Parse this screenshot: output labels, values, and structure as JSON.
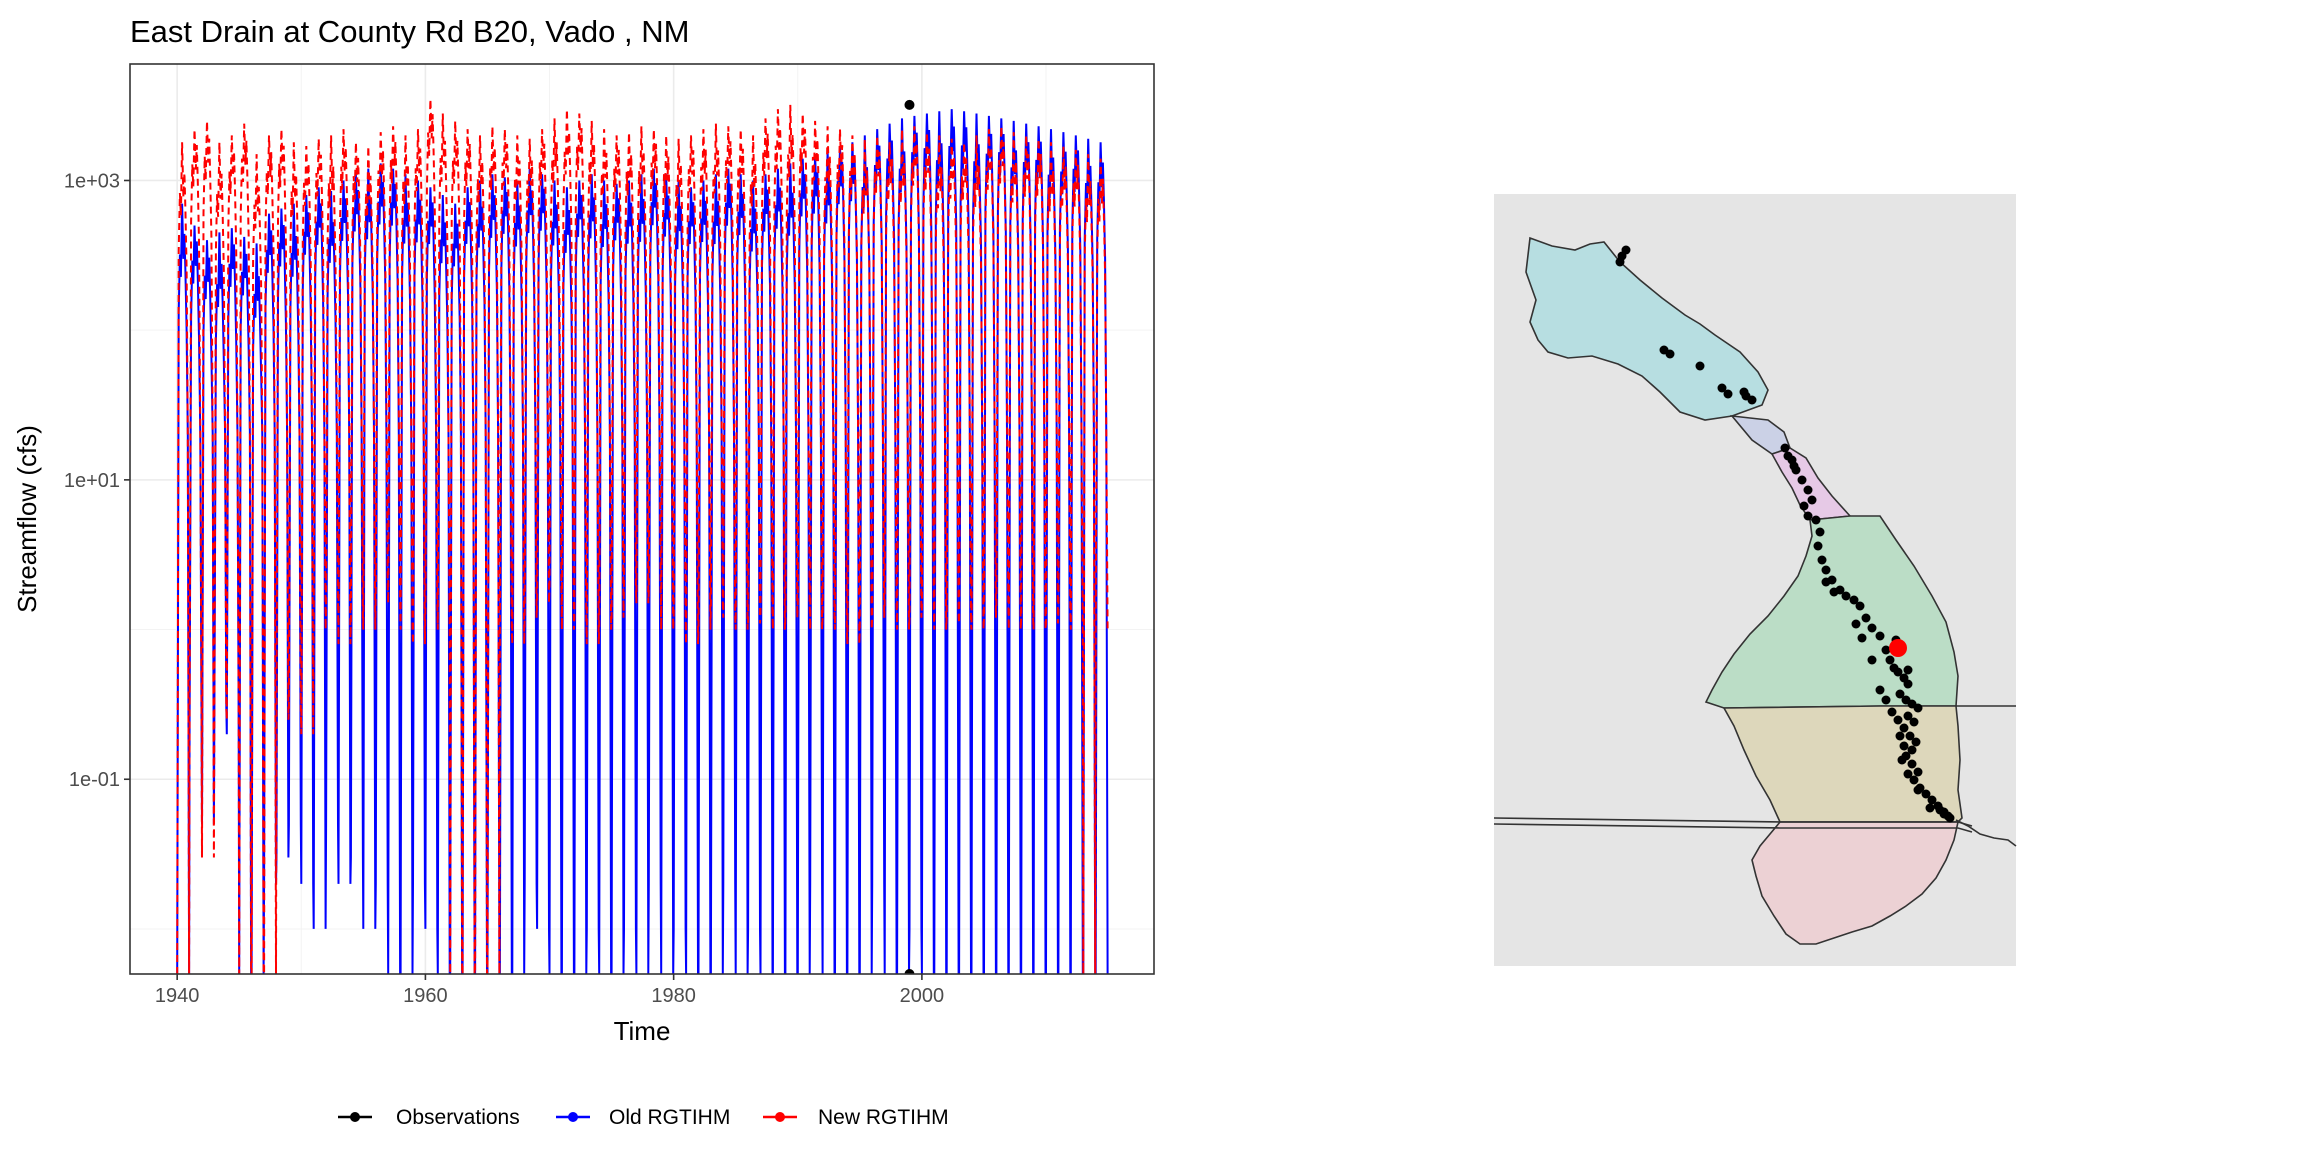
{
  "chart_data": [
    {
      "type": "line",
      "title": "East Drain at County Rd B20, Vado , NM",
      "xlabel": "Time",
      "ylabel": "Streamflow (cfs)",
      "x_ticks": [
        "1940",
        "1960",
        "1980",
        "2000"
      ],
      "y_ticks": [
        "1e-01",
        "1e+01",
        "1e+03"
      ],
      "y_scale": "log10",
      "xlim": [
        1936.2,
        2018.7
      ],
      "ylim": [
        0.005,
        6000
      ],
      "grid": true,
      "legend_position": "bottom",
      "legend": [
        "Observations",
        "Old RGTIHM",
        "New RGTIHM"
      ],
      "series": [
        {
          "name": "Observations",
          "color": "#000000",
          "style": "points",
          "points": [
            [
              1999.0,
              3200
            ],
            [
              1999.0,
              0.005
            ]
          ]
        },
        {
          "name": "Old RGTIHM",
          "color": "#0000ff",
          "style": "solid",
          "start_year": 1940,
          "end_year": 2015,
          "annual_peaks": [
            700,
            500,
            400,
            450,
            480,
            420,
            380,
            600,
            650,
            700,
            800,
            900,
            850,
            1000,
            1100,
            1200,
            1300,
            1200,
            1100,
            1000,
            900,
            800,
            700,
            900,
            1000,
            1100,
            1050,
            1000,
            1200,
            1100,
            1000,
            900,
            1000,
            1100,
            1000,
            950,
            1000,
            1100,
            1200,
            1100,
            1000,
            900,
            1000,
            1100,
            1200,
            1100,
            1000,
            1100,
            1200,
            1300,
            1400,
            1500,
            1600,
            1700,
            1800,
            2000,
            2200,
            2400,
            2600,
            2700,
            2800,
            2900,
            3000,
            2900,
            2800,
            2700,
            2600,
            2500,
            2400,
            2300,
            2200,
            2100,
            2000,
            1900,
            1800
          ],
          "annual_lows": [
            0.005,
            0.25,
            0.05,
            0.3,
            0.2,
            0.005,
            0.005,
            0.02,
            0.03,
            0.05,
            0.02,
            0.01,
            0.05,
            0.02,
            0.03,
            0.01,
            0.02,
            0.005,
            0.005,
            0.02,
            0.01,
            0.005,
            0.005,
            0.005,
            0.005,
            0.005,
            0.005,
            0.005,
            0.02,
            0.01,
            0.005,
            0.005,
            0.005,
            0.01,
            0.005,
            0.005,
            0.01,
            0.005,
            0.02,
            0.005,
            0.01,
            0.005,
            0.005,
            0.005,
            0.02,
            0.005,
            0.01,
            0.005,
            0.005,
            0.005,
            0.005,
            0.02,
            0.005,
            0.005,
            0.005,
            0.005,
            0.02,
            0.005,
            0.005,
            0.01,
            0.005,
            0.005,
            0.005,
            0.005,
            0.005,
            0.005,
            0.005,
            0.005,
            0.005,
            0.005,
            0.005,
            0.005,
            0.005,
            0.005,
            0.005
          ]
        },
        {
          "name": "New RGTIHM",
          "color": "#ff0000",
          "style": "dashed",
          "start_year": 1940,
          "end_year": 2015,
          "annual_peaks": [
            1800,
            2200,
            2500,
            1800,
            2000,
            2400,
            1500,
            2000,
            2200,
            1800,
            1700,
            1900,
            2000,
            2200,
            1800,
            1700,
            2100,
            2300,
            2000,
            2200,
            3500,
            2800,
            2500,
            2200,
            2000,
            2300,
            2200,
            2000,
            1900,
            2200,
            2600,
            3000,
            2800,
            2500,
            2200,
            2000,
            2100,
            2300,
            2200,
            2000,
            1900,
            2000,
            2200,
            2400,
            2300,
            2200,
            2000,
            2600,
            3000,
            3200,
            2800,
            2500,
            2300,
            2200,
            2000,
            1900,
            2000,
            1800,
            2200,
            2300,
            2100,
            2000,
            1900,
            1800,
            2000,
            2200,
            2300,
            2100,
            2000,
            1900,
            1800,
            1700,
            1600,
            1500,
            1400
          ],
          "annual_lows": [
            0.005,
            0.3,
            0.03,
            0.3,
            0.25,
            0.005,
            0.005,
            0.005,
            0.25,
            0.3,
            0.2,
            1.0,
            1.5,
            0.8,
            1.2,
            1.0,
            2.0,
            1.5,
            1.0,
            0.8,
            1.5,
            1.0,
            0.005,
            0.005,
            0.005,
            0.005,
            1.0,
            0.8,
            1.2,
            1.5,
            2.0,
            1.0,
            1.2,
            0.8,
            1.0,
            1.2,
            2.0,
            1.5,
            1.8,
            1.0,
            1.2,
            0.8,
            1.0,
            1.5,
            1.2,
            1.0,
            1.1,
            1.3,
            1.0,
            1.2,
            1.5,
            1.0,
            1.2,
            1.0,
            0.8,
            1.0,
            1.2,
            1.5,
            1.0,
            1.2,
            1.4,
            1.0,
            1.2,
            1.1,
            1.0,
            1.2,
            1.5,
            1.0,
            1.2,
            1.0,
            1.1,
            1.3,
            1.0,
            0.005,
            1.0
          ]
        }
      ]
    },
    {
      "type": "map",
      "background": "#e5e5e5",
      "polygon_fills": [
        "#b4dde0",
        "#c9d0e6",
        "#e6c7e6",
        "#b8dcc4",
        "#dcd6b8",
        "#ecd0d3"
      ],
      "points_count": 80,
      "point_color": "#000000",
      "highlight_point_color": "#ff0000"
    }
  ]
}
